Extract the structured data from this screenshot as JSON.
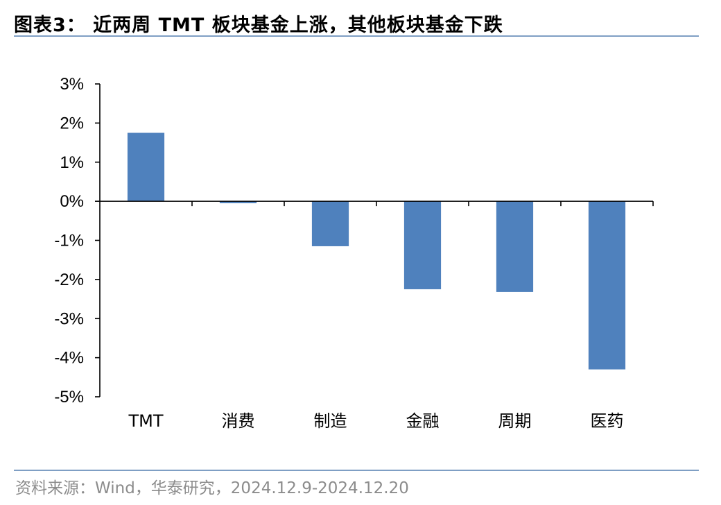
{
  "header": {
    "title": "图表3：  近两周 TMT 板块基金上涨，其他板块基金下跌"
  },
  "footer": {
    "source": "资料来源：Wind，华泰研究，2024.12.9-2024.12.20"
  },
  "colors": {
    "bar": "#4f81bd",
    "rule": "#7f9fc4",
    "source_text": "#8c8c8c"
  },
  "chart_data": {
    "type": "bar",
    "categories": [
      "TMT",
      "消费",
      "制造",
      "金融",
      "周期",
      "医药"
    ],
    "values": [
      1.75,
      -0.05,
      -1.15,
      -2.25,
      -2.32,
      -4.3
    ],
    "unit": "%",
    "title": "",
    "xlabel": "",
    "ylabel": "",
    "ylim": [
      -5,
      3
    ],
    "yticks": [
      3,
      2,
      1,
      0,
      -1,
      -2,
      -3,
      -4,
      -5
    ],
    "ytick_labels": [
      "3%",
      "2%",
      "1%",
      "0%",
      "-1%",
      "-2%",
      "-3%",
      "-4%",
      "-5%"
    ],
    "grid": false,
    "legend": "none"
  }
}
